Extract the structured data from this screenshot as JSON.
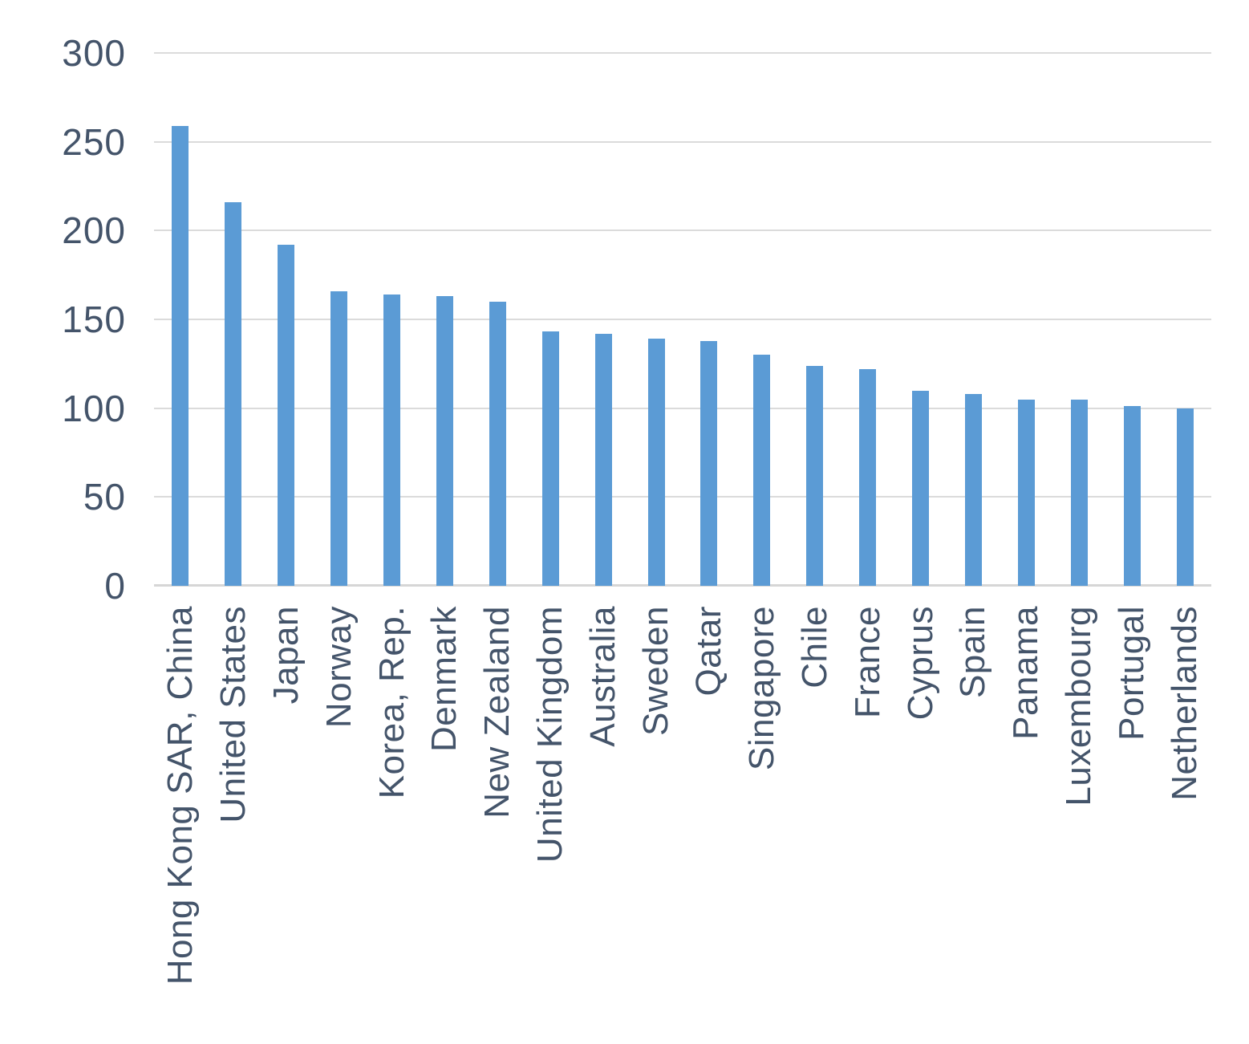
{
  "chart_data": {
    "type": "bar",
    "title": "",
    "xlabel": "",
    "ylabel": "",
    "categories": [
      "Hong Kong SAR, China",
      "United States",
      "Japan",
      "Norway",
      "Korea, Rep.",
      "Denmark",
      "New Zealand",
      "United Kingdom",
      "Australia",
      "Sweden",
      "Qatar",
      "Singapore",
      "Chile",
      "France",
      "Cyprus",
      "Spain",
      "Panama",
      "Luxembourg",
      "Portugal",
      "Netherlands"
    ],
    "values": [
      259,
      216,
      192,
      166,
      164,
      163,
      160,
      143,
      142,
      139,
      138,
      130,
      124,
      122,
      110,
      108,
      105,
      105,
      101,
      100
    ],
    "ylim": [
      0,
      300
    ],
    "yticks": [
      0,
      50,
      100,
      150,
      200,
      250,
      300
    ],
    "grid": true,
    "legend": false,
    "bar_color": "#5B9BD5",
    "tick_label_color": "#44546A",
    "gridline_color": "#DBDBDB",
    "axis_line_color": "#D6D6D6"
  }
}
